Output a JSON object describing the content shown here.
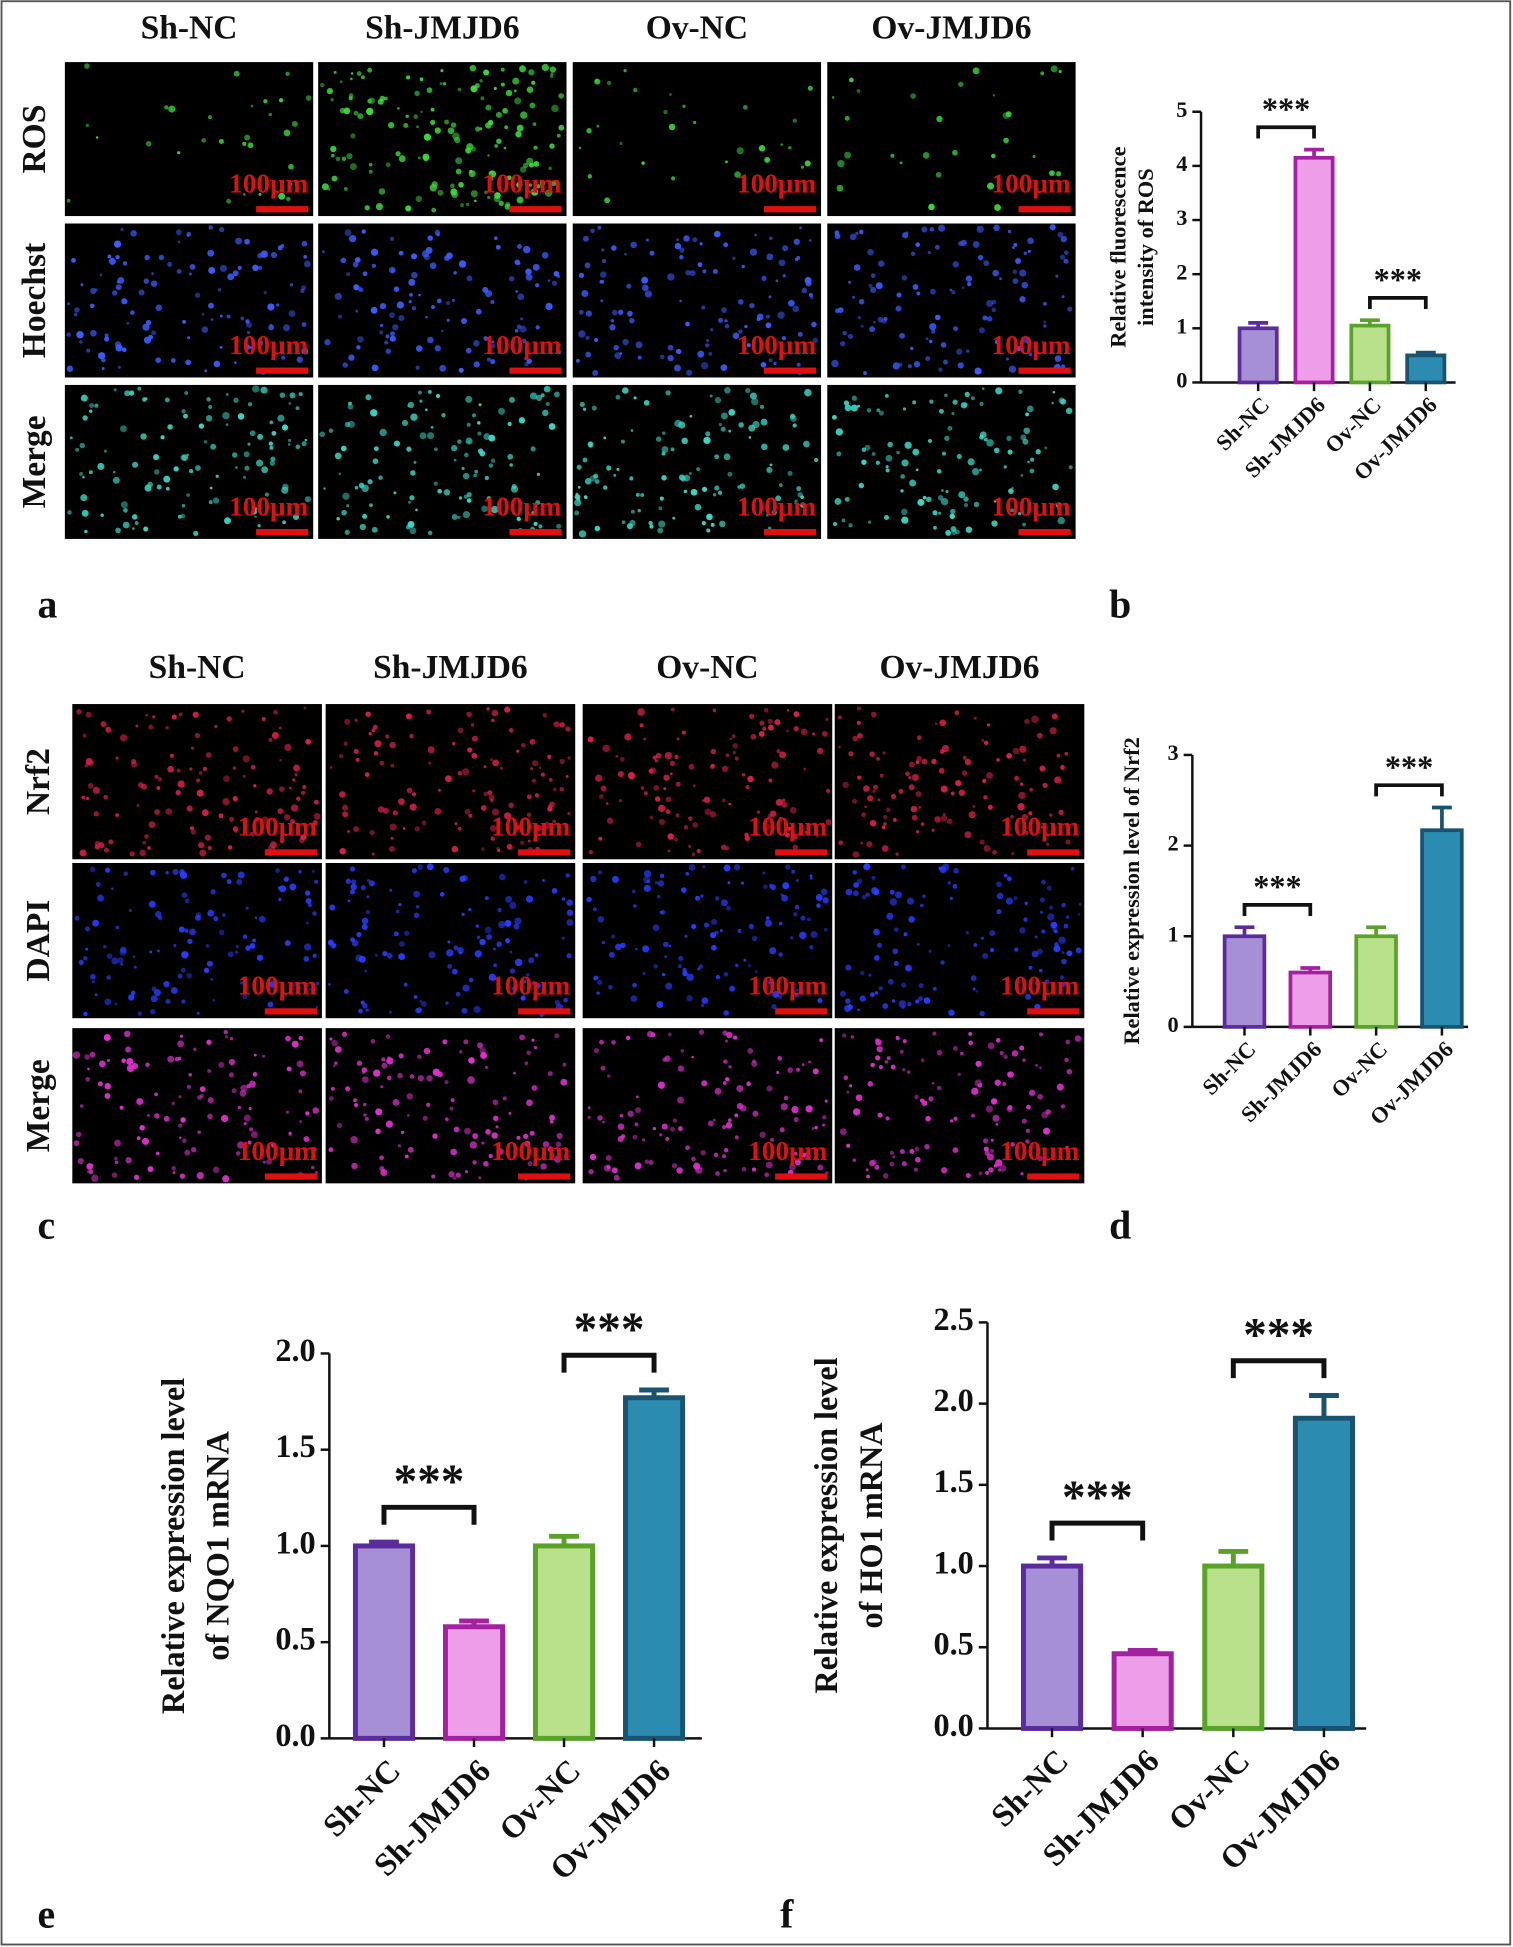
{
  "micrographs": [
    {
      "label": "a",
      "columns": [
        "Sh-NC",
        "Sh-JMJD6",
        "Ov-NC",
        "Ov-JMJD6"
      ],
      "rows": [
        "ROS",
        "Hoechst",
        "Merge"
      ],
      "scale_bar": "100μm",
      "row_colors": [
        "#3ad83a",
        "#3b5cff",
        "#3ad6c2"
      ]
    },
    {
      "label": "c",
      "columns": [
        "Sh-NC",
        "Sh-JMJD6",
        "Ov-NC",
        "Ov-JMJD6"
      ],
      "rows": [
        "Nrf2",
        "DAPI",
        "Merge"
      ],
      "scale_bar": "100μm",
      "row_colors": [
        "#d8204a",
        "#2a3cff",
        "#e030d0"
      ]
    }
  ],
  "chart_data": [
    {
      "type": "bar",
      "panel_label": "b",
      "ylabel": [
        "Relative fluorescence",
        "intensity of ROS"
      ],
      "categories": [
        "Sh-NC",
        "Sh-JMJD6",
        "Ov-NC",
        "Ov-JMJD6"
      ],
      "values": [
        1.0,
        4.15,
        1.05,
        0.5
      ],
      "errors": [
        0.1,
        0.15,
        0.1,
        0.05
      ],
      "colors": [
        "#a78fd6",
        "#ee9ee9",
        "#b9e08a",
        "#2b8bb0"
      ],
      "edge_colors": [
        "#5b2d9c",
        "#a3209e",
        "#5aa22a",
        "#1a5370"
      ],
      "ylim": [
        0,
        5
      ],
      "yticks": [
        0,
        1,
        2,
        3,
        4,
        5
      ],
      "annotations": [
        {
          "text": "***",
          "from": "Sh-NC",
          "to": "Sh-JMJD6"
        },
        {
          "text": "***",
          "from": "Ov-NC",
          "to": "Ov-JMJD6"
        }
      ]
    },
    {
      "type": "bar",
      "panel_label": "d",
      "ylabel": [
        "Relative expression level of Nrf2"
      ],
      "categories": [
        "Sh-NC",
        "Sh-JMJD6",
        "Ov-NC",
        "Ov-JMJD6"
      ],
      "values": [
        1.0,
        0.6,
        1.0,
        2.17
      ],
      "errors": [
        0.1,
        0.05,
        0.1,
        0.25
      ],
      "colors": [
        "#a78fd6",
        "#ee9ee9",
        "#b9e08a",
        "#2b8bb0"
      ],
      "edge_colors": [
        "#5b2d9c",
        "#a3209e",
        "#5aa22a",
        "#1a5370"
      ],
      "ylim": [
        0,
        3
      ],
      "yticks": [
        0,
        1,
        2,
        3
      ],
      "annotations": [
        {
          "text": "***",
          "from": "Sh-NC",
          "to": "Sh-JMJD6"
        },
        {
          "text": "***",
          "from": "Ov-NC",
          "to": "Ov-JMJD6"
        }
      ]
    },
    {
      "type": "bar",
      "panel_label": "e",
      "ylabel": [
        "Relative expression level",
        "of NQO1 mRNA"
      ],
      "categories": [
        "Sh-NC",
        "Sh-JMJD6",
        "Ov-NC",
        "Ov-JMJD6"
      ],
      "values": [
        1.0,
        0.58,
        1.0,
        1.77
      ],
      "errors": [
        0.02,
        0.03,
        0.05,
        0.04
      ],
      "colors": [
        "#a78fd6",
        "#ee9ee9",
        "#b9e08a",
        "#2b8bb0"
      ],
      "edge_colors": [
        "#5b2d9c",
        "#a3209e",
        "#5aa22a",
        "#1a5370"
      ],
      "ylim": [
        0,
        2
      ],
      "yticks": [
        {
          "value": 0,
          "label": "0.0"
        },
        {
          "value": 0.5,
          "label": "0.5"
        },
        {
          "value": 1,
          "label": "1.0"
        },
        {
          "value": 1.5,
          "label": "1.5"
        },
        {
          "value": 2,
          "label": "2.0"
        }
      ],
      "annotations": [
        {
          "text": "***",
          "from": "Sh-NC",
          "to": "Sh-JMJD6"
        },
        {
          "text": "***",
          "from": "Ov-NC",
          "to": "Ov-JMJD6"
        }
      ]
    },
    {
      "type": "bar",
      "panel_label": "f",
      "ylabel": [
        "Relative expression level",
        "of HO1 mRNA"
      ],
      "categories": [
        "Sh-NC",
        "Sh-JMJD6",
        "Ov-NC",
        "Ov-JMJD6"
      ],
      "values": [
        1.0,
        0.46,
        1.0,
        1.91
      ],
      "errors": [
        0.05,
        0.02,
        0.09,
        0.14
      ],
      "colors": [
        "#a78fd6",
        "#ee9ee9",
        "#b9e08a",
        "#2b8bb0"
      ],
      "edge_colors": [
        "#5b2d9c",
        "#a3209e",
        "#5aa22a",
        "#1a5370"
      ],
      "ylim": [
        0,
        2.5
      ],
      "yticks": [
        {
          "value": 0,
          "label": "0.0"
        },
        {
          "value": 0.5,
          "label": "0.5"
        },
        {
          "value": 1,
          "label": "1.0"
        },
        {
          "value": 1.5,
          "label": "1.5"
        },
        {
          "value": 2,
          "label": "2.0"
        },
        {
          "value": 2.5,
          "label": "2.5"
        }
      ],
      "annotations": [
        {
          "text": "***",
          "from": "Sh-NC",
          "to": "Sh-JMJD6"
        },
        {
          "text": "***",
          "from": "Ov-NC",
          "to": "Ov-JMJD6"
        }
      ]
    }
  ]
}
